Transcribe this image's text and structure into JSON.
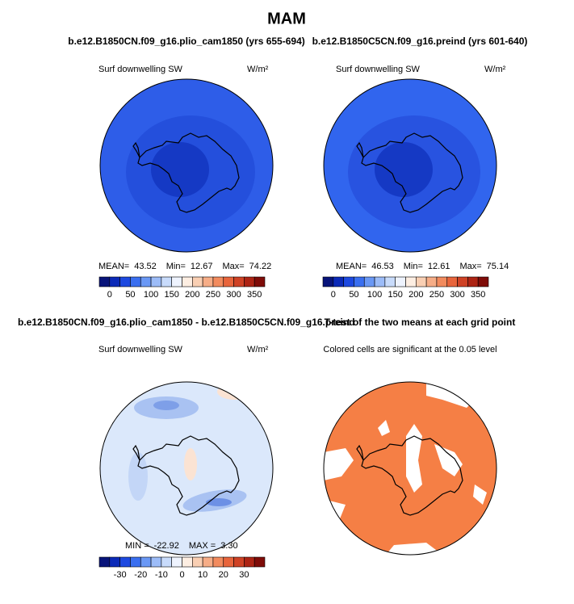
{
  "title": "MAM",
  "panels": [
    {
      "title": "b.e12.B1850CN.f09_g16.plio_cam1850 (yrs 655-694)",
      "variable": "Surf downwelling SW",
      "units": "W/m²",
      "stats": [
        "MEAN=",
        "43.52",
        "Min=",
        "12.67",
        "Max=",
        "74.22"
      ]
    },
    {
      "title": "b.e12.B1850C5CN.f09_g16.preind (yrs 601-640)",
      "variable": "Surf downwelling SW",
      "units": "W/m²",
      "stats": [
        "MEAN=",
        "46.53",
        "Min=",
        "12.61",
        "Max=",
        "75.14"
      ]
    },
    {
      "title": "b.e12.B1850CN.f09_g16.plio_cam1850 - b.e12.B1850C5CN.f09_g16.preind",
      "variable": "Surf downwelling SW",
      "units": "W/m²",
      "stats": [
        "MIN =",
        "-22.92",
        "MAX =",
        "3.30"
      ]
    },
    {
      "title": "T-test of the two means at each grid point",
      "variable": "Colored cells are significant at the 0.05 level"
    }
  ],
  "colorbars": [
    {
      "lim": [
        -25,
        375
      ],
      "labels": [
        0,
        50,
        100,
        150,
        200,
        250,
        300,
        350
      ],
      "colors": [
        "#08147a",
        "#0b2ab8",
        "#1d49e0",
        "#3a6ff0",
        "#6a98f5",
        "#9cbcf8",
        "#c8dbfb",
        "#eef3fe",
        "#fdeee2",
        "#f9cfb3",
        "#f6ad87",
        "#f28b5e",
        "#e8653c",
        "#cf4225",
        "#ad2414",
        "#7f0c08"
      ]
    },
    {
      "lim": [
        -40,
        40
      ],
      "labels": [
        -30,
        -20,
        -10,
        0,
        10,
        20,
        30
      ],
      "colors": [
        "#08147a",
        "#0b2ab8",
        "#1d49e0",
        "#3a6ff0",
        "#6a98f5",
        "#9cbcf8",
        "#c8dbfb",
        "#eef3fe",
        "#fdeee2",
        "#f9cfb3",
        "#f6ad87",
        "#f28b5e",
        "#e8653c",
        "#cf4225",
        "#ad2414",
        "#7f0c08"
      ]
    }
  ]
}
